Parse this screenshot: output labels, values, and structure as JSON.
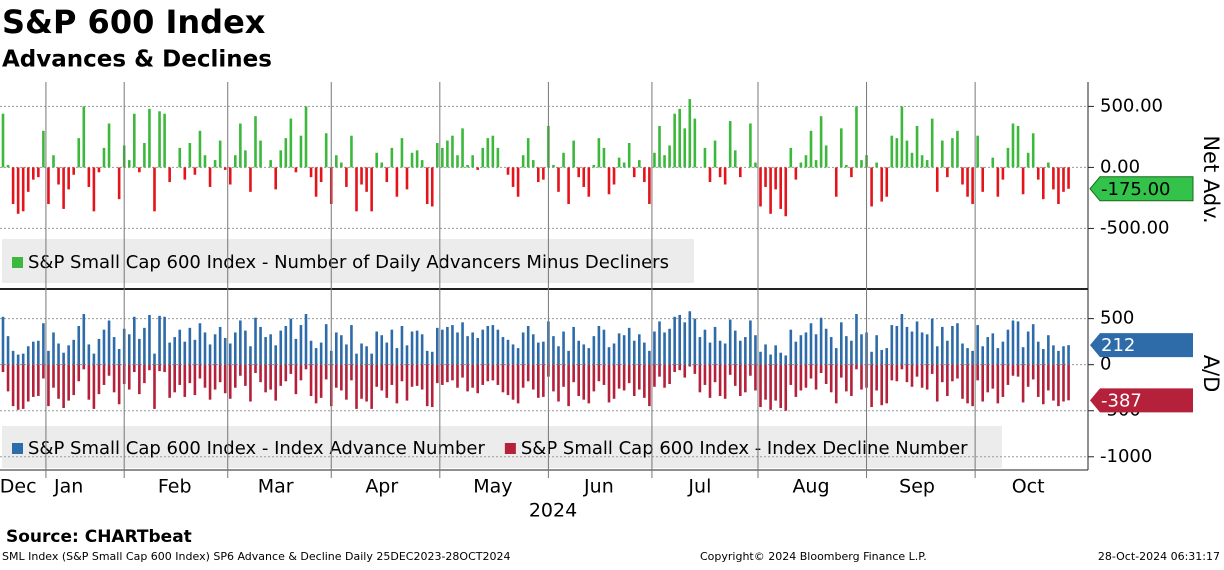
{
  "title": "S&P 600 Index",
  "subtitle": "Advances & Declines",
  "year_label": "2024",
  "source": "Source: CHARTbeat",
  "footer": {
    "left": "SML Index (S&P Small Cap 600 Index) SP6 Advance & Decline  Daily 25DEC2023-28OCT2024",
    "center": "Copyright© 2024 Bloomberg Finance L.P.",
    "right": "28-Oct-2024 06:31:17"
  },
  "chart_data": [
    {
      "type": "bar",
      "y_label": "Net Adv.",
      "ylim": [
        -980,
        700
      ],
      "grid": true,
      "yticks": [
        {
          "value": 500,
          "label": "500.00"
        },
        {
          "value": 0,
          "label": "0.00"
        },
        {
          "value": -500,
          "label": "-500.00"
        }
      ],
      "series": [
        {
          "name": "S&P Small Cap 600 Index - Number of Daily Advancers Minus Decliners",
          "color": "#3cb83c",
          "negative_color": "#e3141c",
          "last_value_label": "-175.00",
          "values": [
            440,
            20,
            -300,
            -380,
            -360,
            -200,
            -100,
            -80,
            300,
            -300,
            100,
            -140,
            -340,
            -180,
            -60,
            240,
            500,
            -160,
            -360,
            -40,
            160,
            360,
            0,
            -260,
            180,
            60,
            440,
            -40,
            200,
            480,
            -360,
            460,
            440,
            -120,
            0,
            160,
            -100,
            200,
            -60,
            300,
            100,
            -160,
            60,
            220,
            -20,
            -140,
            100,
            360,
            140,
            -200,
            420,
            220,
            0,
            60,
            -180,
            140,
            240,
            400,
            -40,
            260,
            500,
            -80,
            -240,
            -120,
            280,
            -300,
            100,
            40,
            -160,
            260,
            -360,
            -140,
            -200,
            -360,
            120,
            40,
            -120,
            160,
            -240,
            240,
            -180,
            120,
            140,
            60,
            -300,
            -320,
            200,
            160,
            220,
            260,
            100,
            320,
            20,
            100,
            -20,
            160,
            240,
            260,
            160,
            0,
            -60,
            -160,
            -240,
            100,
            240,
            60,
            -120,
            -100,
            340,
            20,
            -200,
            120,
            -300,
            220,
            -80,
            -160,
            -240,
            20,
            240,
            160,
            -220,
            -140,
            80,
            40,
            200,
            -80,
            60,
            -120,
            -300,
            120,
            340,
            100,
            180,
            440,
            480,
            320,
            560,
            400,
            0,
            160,
            -120,
            220,
            -80,
            -140,
            380,
            140,
            -80,
            0,
            360,
            40,
            -320,
            -160,
            -380,
            -180,
            -340,
            -400,
            160,
            -100,
            40,
            100,
            300,
            60,
            420,
            180,
            0,
            -240,
            320,
            20,
            -80,
            500,
            60,
            100,
            -320,
            40,
            -280,
            -240,
            260,
            240,
            500,
            220,
            120,
            340,
            100,
            60,
            400,
            -200,
            220,
            -80,
            240,
            300,
            -140,
            -240,
            -300,
            260,
            -200,
            0,
            80,
            -240,
            -100,
            160,
            360,
            340,
            -220,
            120,
            280,
            -100,
            -260,
            40,
            -180,
            -300,
            -200,
            -175
          ]
        }
      ]
    },
    {
      "type": "bar",
      "y_label": "A/D",
      "ylim": [
        -1100,
        800
      ],
      "grid": true,
      "yticks": [
        500,
        0,
        -500,
        -1000
      ],
      "categories": [
        null,
        null,
        null,
        "Dec",
        null,
        null,
        null,
        null,
        null,
        null,
        null,
        null,
        null,
        "Jan",
        null,
        null,
        null,
        null,
        null,
        null,
        null,
        null,
        null,
        null,
        null,
        null,
        null,
        null,
        null,
        null,
        null,
        null,
        null,
        null,
        "Feb",
        null,
        null,
        null,
        null,
        null,
        null,
        null,
        null,
        null,
        null,
        null,
        null,
        null,
        null,
        null,
        null,
        null,
        null,
        null,
        "Mar",
        null,
        null,
        null,
        null,
        null,
        null,
        null,
        null,
        null,
        null,
        null,
        null,
        null,
        null,
        null,
        null,
        null,
        null,
        null,
        null,
        "Apr",
        null,
        null,
        null,
        null,
        null,
        null,
        null,
        null,
        null,
        null,
        null,
        null,
        null,
        null,
        null,
        null,
        null,
        null,
        null,
        null,
        null,
        "May",
        null,
        null,
        null,
        null,
        null,
        null,
        null,
        null,
        null,
        null,
        null,
        null,
        null,
        null,
        null,
        null,
        null,
        null,
        null,
        null,
        "Jun",
        null,
        null,
        null,
        null,
        null,
        null,
        null,
        null,
        null,
        null,
        null,
        null,
        null,
        null,
        null,
        null,
        null,
        null,
        null,
        "Jul",
        null,
        null,
        null,
        null,
        null,
        null,
        null,
        null,
        null,
        null,
        null,
        null,
        null,
        null,
        null,
        null,
        null,
        null,
        null,
        null,
        null,
        "Aug",
        null,
        null,
        null,
        null,
        null,
        null,
        null,
        null,
        null,
        null,
        null,
        null,
        null,
        null,
        null,
        null,
        null,
        null,
        null,
        null,
        "Sep",
        null,
        null,
        null,
        null,
        null,
        null,
        null,
        null,
        null,
        null,
        null,
        null,
        null,
        null,
        null,
        null,
        null,
        null,
        null,
        null,
        null,
        "Oct",
        null,
        null,
        null,
        null,
        null,
        null,
        null,
        null
      ],
      "series": [
        {
          "name": "S&P Small Cap 600 Index - Index Advance Number",
          "color": "#2e6ca9",
          "values": [
            520,
            310,
            150,
            110,
            120,
            200,
            250,
            260,
            450,
            150,
            350,
            230,
            130,
            210,
            270,
            420,
            550,
            220,
            120,
            280,
            380,
            480,
            300,
            170,
            390,
            330,
            520,
            280,
            400,
            540,
            120,
            530,
            520,
            240,
            300,
            380,
            250,
            400,
            270,
            450,
            350,
            220,
            330,
            410,
            290,
            230,
            350,
            480,
            370,
            200,
            510,
            410,
            300,
            330,
            210,
            370,
            420,
            500,
            280,
            430,
            550,
            260,
            180,
            240,
            440,
            150,
            350,
            320,
            220,
            430,
            120,
            230,
            200,
            120,
            360,
            320,
            240,
            380,
            180,
            420,
            210,
            360,
            370,
            330,
            150,
            140,
            400,
            380,
            410,
            430,
            350,
            460,
            310,
            350,
            290,
            380,
            420,
            430,
            380,
            300,
            270,
            220,
            180,
            350,
            420,
            330,
            240,
            250,
            470,
            310,
            200,
            360,
            150,
            410,
            260,
            220,
            180,
            310,
            420,
            380,
            190,
            230,
            340,
            320,
            400,
            260,
            330,
            240,
            150,
            360,
            470,
            350,
            390,
            520,
            540,
            460,
            580,
            500,
            300,
            380,
            240,
            410,
            260,
            230,
            490,
            370,
            260,
            300,
            480,
            320,
            140,
            220,
            110,
            210,
            130,
            100,
            380,
            250,
            320,
            350,
            450,
            330,
            510,
            390,
            300,
            180,
            460,
            310,
            260,
            550,
            330,
            350,
            140,
            320,
            160,
            180,
            430,
            420,
            550,
            410,
            360,
            470,
            350,
            330,
            500,
            200,
            410,
            260,
            420,
            450,
            230,
            180,
            150,
            430,
            200,
            300,
            340,
            180,
            250,
            380,
            480,
            470,
            190,
            360,
            440,
            250,
            170,
            320,
            210,
            150,
            200,
            212
          ]
        },
        {
          "name": "S&P Small Cap 600 Index - Index Decline Number",
          "color": "#b5203a",
          "values": [
            -80,
            -290,
            -450,
            -490,
            -480,
            -400,
            -350,
            -340,
            -150,
            -450,
            -250,
            -370,
            -470,
            -390,
            -330,
            -180,
            -50,
            -380,
            -480,
            -320,
            -220,
            -120,
            -300,
            -430,
            -210,
            -270,
            -80,
            -320,
            -200,
            -60,
            -480,
            -70,
            -80,
            -360,
            -300,
            -220,
            -350,
            -200,
            -330,
            -150,
            -250,
            -380,
            -270,
            -190,
            -310,
            -370,
            -250,
            -120,
            -230,
            -400,
            -90,
            -190,
            -300,
            -270,
            -390,
            -230,
            -180,
            -100,
            -320,
            -170,
            -50,
            -340,
            -420,
            -360,
            -160,
            -450,
            -250,
            -280,
            -380,
            -170,
            -480,
            -370,
            -400,
            -480,
            -240,
            -280,
            -360,
            -220,
            -420,
            -180,
            -390,
            -240,
            -230,
            -270,
            -450,
            -460,
            -200,
            -220,
            -190,
            -170,
            -250,
            -140,
            -290,
            -250,
            -310,
            -220,
            -180,
            -170,
            -220,
            -300,
            -330,
            -380,
            -420,
            -250,
            -180,
            -270,
            -360,
            -350,
            -130,
            -290,
            -400,
            -240,
            -450,
            -190,
            -340,
            -380,
            -420,
            -290,
            -180,
            -220,
            -410,
            -370,
            -260,
            -280,
            -200,
            -340,
            -270,
            -360,
            -450,
            -240,
            -130,
            -250,
            -210,
            -80,
            -60,
            -140,
            -20,
            -100,
            -300,
            -220,
            -360,
            -190,
            -340,
            -370,
            -110,
            -230,
            -340,
            -300,
            -120,
            -280,
            -460,
            -380,
            -490,
            -390,
            -470,
            -500,
            -220,
            -350,
            -280,
            -250,
            -150,
            -270,
            -90,
            -210,
            -300,
            -420,
            -140,
            -290,
            -340,
            -50,
            -270,
            -250,
            -460,
            -280,
            -440,
            -420,
            -170,
            -180,
            -50,
            -190,
            -240,
            -130,
            -250,
            -270,
            -100,
            -400,
            -190,
            -340,
            -180,
            -150,
            -370,
            -420,
            -450,
            -170,
            -400,
            -300,
            -260,
            -420,
            -350,
            -220,
            -120,
            -130,
            -410,
            -240,
            -160,
            -350,
            -430,
            -280,
            -390,
            -450,
            -400,
            -387
          ]
        }
      ]
    }
  ]
}
